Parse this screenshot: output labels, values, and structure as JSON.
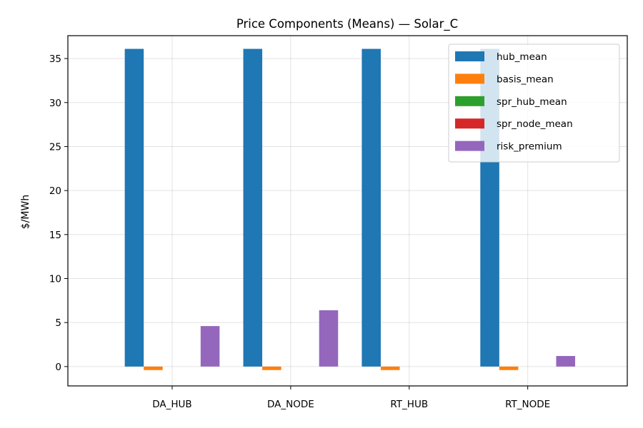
{
  "chart_data": {
    "type": "bar",
    "title": "Price Components (Means) — Solar_C",
    "xlabel": "",
    "ylabel": "$/MWh",
    "categories": [
      "DA_HUB",
      "DA_NODE",
      "RT_HUB",
      "RT_NODE"
    ],
    "ylim": [
      -2.2,
      37.6
    ],
    "yticks": [
      0,
      5,
      10,
      15,
      20,
      25,
      30,
      35
    ],
    "grid": true,
    "legend_position": "top-right",
    "series": [
      {
        "name": "hub_mean",
        "color": "#1f77b4",
        "values": [
          36.1,
          36.1,
          36.1,
          36.1
        ]
      },
      {
        "name": "basis_mean",
        "color": "#ff7f0e",
        "values": [
          -0.4,
          -0.4,
          -0.4,
          -0.4
        ]
      },
      {
        "name": "spr_hub_mean",
        "color": "#2ca02c",
        "values": [
          0,
          0,
          0,
          0
        ]
      },
      {
        "name": "spr_node_mean",
        "color": "#d62728",
        "values": [
          0,
          0,
          0,
          0
        ]
      },
      {
        "name": "risk_premium",
        "color": "#9467bd",
        "values": [
          4.6,
          6.4,
          0,
          1.2
        ]
      }
    ]
  }
}
